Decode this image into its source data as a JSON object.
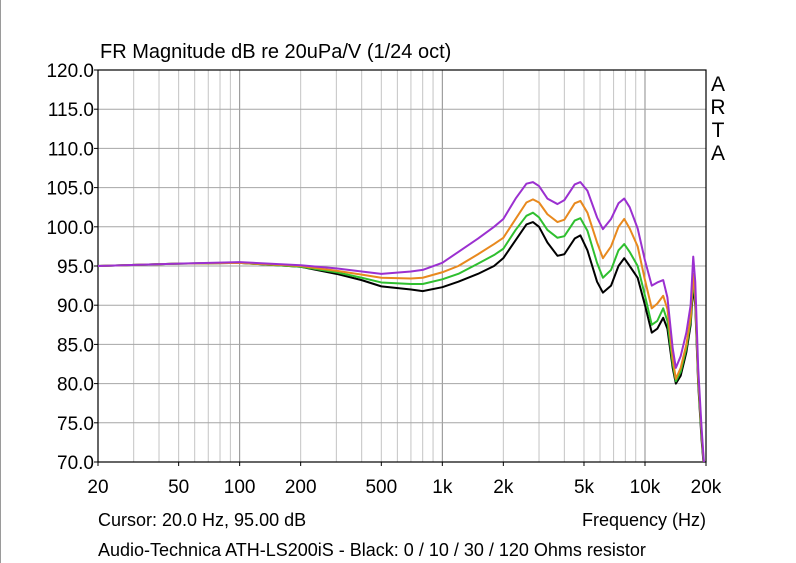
{
  "chart_data": {
    "type": "line",
    "title": "FR Magnitude dB re 20uPa/V (1/24 oct)",
    "xlabel": "Frequency (Hz)",
    "ylabel": "",
    "xscale": "log",
    "xlim": [
      20,
      20000
    ],
    "ylim": [
      70,
      120
    ],
    "grid": true,
    "y_ticks": [
      "120.0",
      "115.0",
      "110.0",
      "105.0",
      "100.0",
      "95.0",
      "90.0",
      "85.0",
      "80.0",
      "75.0",
      "70.0"
    ],
    "x_ticks": [
      {
        "value": 20,
        "label": "20"
      },
      {
        "value": 50,
        "label": "50"
      },
      {
        "value": 100,
        "label": "100"
      },
      {
        "value": 200,
        "label": "200"
      },
      {
        "value": 500,
        "label": "500"
      },
      {
        "value": 1000,
        "label": "1k"
      },
      {
        "value": 2000,
        "label": "2k"
      },
      {
        "value": 5000,
        "label": "5k"
      },
      {
        "value": 10000,
        "label": "10k"
      },
      {
        "value": 20000,
        "label": "20k"
      }
    ],
    "watermark": [
      "A",
      "R",
      "T",
      "A"
    ],
    "cursor_text": "Cursor: 20.0 Hz, 95.00 dB",
    "caption": "Audio-Technica ATH-LS200iS - Black: 0 / 10 / 30 / 120 Ohms resistor",
    "series": [
      {
        "color": "#000000",
        "points": [
          [
            20,
            95
          ],
          [
            50,
            95.3
          ],
          [
            100,
            95.4
          ],
          [
            200,
            94.9
          ],
          [
            300,
            94
          ],
          [
            400,
            93.2
          ],
          [
            500,
            92.4
          ],
          [
            700,
            92
          ],
          [
            800,
            91.8
          ],
          [
            1000,
            92.3
          ],
          [
            1200,
            93
          ],
          [
            1500,
            94
          ],
          [
            1800,
            95
          ],
          [
            2000,
            96
          ],
          [
            2300,
            98.3
          ],
          [
            2600,
            100.3
          ],
          [
            2800,
            100.6
          ],
          [
            3000,
            100
          ],
          [
            3300,
            98
          ],
          [
            3700,
            96.3
          ],
          [
            4000,
            96.5
          ],
          [
            4500,
            98.5
          ],
          [
            4800,
            98.9
          ],
          [
            5200,
            97
          ],
          [
            5800,
            93
          ],
          [
            6200,
            91.6
          ],
          [
            6800,
            92.5
          ],
          [
            7400,
            95
          ],
          [
            7900,
            96
          ],
          [
            8400,
            95
          ],
          [
            9200,
            93.5
          ],
          [
            10000,
            90
          ],
          [
            10800,
            86.5
          ],
          [
            11500,
            87
          ],
          [
            12300,
            88.4
          ],
          [
            12900,
            87
          ],
          [
            13700,
            82
          ],
          [
            14200,
            80
          ],
          [
            15000,
            81
          ],
          [
            16000,
            84
          ],
          [
            16800,
            87.5
          ],
          [
            17300,
            92.5
          ],
          [
            17700,
            90
          ],
          [
            18300,
            80
          ],
          [
            19000,
            73
          ],
          [
            20000,
            66
          ]
        ]
      },
      {
        "color": "#2fbf2f",
        "points": [
          [
            20,
            95
          ],
          [
            50,
            95.3
          ],
          [
            100,
            95.4
          ],
          [
            200,
            94.9
          ],
          [
            300,
            94.2
          ],
          [
            400,
            93.5
          ],
          [
            500,
            92.9
          ],
          [
            700,
            92.7
          ],
          [
            800,
            92.7
          ],
          [
            1000,
            93.3
          ],
          [
            1200,
            94
          ],
          [
            1500,
            95.3
          ],
          [
            1800,
            96.4
          ],
          [
            2000,
            97.2
          ],
          [
            2300,
            99.6
          ],
          [
            2600,
            101.4
          ],
          [
            2800,
            101.8
          ],
          [
            3000,
            101.2
          ],
          [
            3300,
            99.6
          ],
          [
            3700,
            98.6
          ],
          [
            4000,
            98.8
          ],
          [
            4500,
            100.8
          ],
          [
            4800,
            101.1
          ],
          [
            5200,
            99.5
          ],
          [
            5800,
            95.4
          ],
          [
            6200,
            93.5
          ],
          [
            6800,
            94.5
          ],
          [
            7400,
            97
          ],
          [
            7900,
            97.8
          ],
          [
            8400,
            96.8
          ],
          [
            9200,
            95
          ],
          [
            10000,
            91.2
          ],
          [
            10800,
            87.5
          ],
          [
            11500,
            88
          ],
          [
            12300,
            89.6
          ],
          [
            12900,
            88
          ],
          [
            13700,
            82.5
          ],
          [
            14200,
            80.3
          ],
          [
            15000,
            81.5
          ],
          [
            16000,
            84.5
          ],
          [
            16800,
            88
          ],
          [
            17300,
            93.5
          ],
          [
            17700,
            90.5
          ],
          [
            18300,
            80.5
          ],
          [
            19000,
            73.5
          ],
          [
            20000,
            66
          ]
        ]
      },
      {
        "color": "#e8891e",
        "points": [
          [
            20,
            95
          ],
          [
            50,
            95.3
          ],
          [
            100,
            95.4
          ],
          [
            200,
            95
          ],
          [
            300,
            94.4
          ],
          [
            400,
            93.9
          ],
          [
            500,
            93.5
          ],
          [
            700,
            93.4
          ],
          [
            800,
            93.5
          ],
          [
            1000,
            94.2
          ],
          [
            1200,
            95
          ],
          [
            1500,
            96.5
          ],
          [
            1800,
            97.8
          ],
          [
            2000,
            98.6
          ],
          [
            2300,
            101
          ],
          [
            2600,
            103.1
          ],
          [
            2800,
            103.5
          ],
          [
            3000,
            103.1
          ],
          [
            3300,
            101.6
          ],
          [
            3700,
            100.6
          ],
          [
            4000,
            100.9
          ],
          [
            4500,
            103
          ],
          [
            4800,
            103.3
          ],
          [
            5200,
            101.8
          ],
          [
            5800,
            98
          ],
          [
            6200,
            96
          ],
          [
            6800,
            97.5
          ],
          [
            7400,
            100
          ],
          [
            7900,
            101
          ],
          [
            8400,
            99.8
          ],
          [
            9200,
            97.5
          ],
          [
            10000,
            93.2
          ],
          [
            10800,
            89.6
          ],
          [
            11500,
            90.2
          ],
          [
            12300,
            91.2
          ],
          [
            12900,
            89.5
          ],
          [
            13700,
            83.2
          ],
          [
            14200,
            80.6
          ],
          [
            15000,
            82
          ],
          [
            16000,
            85
          ],
          [
            16800,
            88.5
          ],
          [
            17300,
            94
          ],
          [
            17700,
            91
          ],
          [
            18300,
            81
          ],
          [
            19000,
            74
          ],
          [
            20000,
            66
          ]
        ]
      },
      {
        "color": "#9b30d0",
        "points": [
          [
            20,
            95
          ],
          [
            50,
            95.3
          ],
          [
            100,
            95.5
          ],
          [
            200,
            95.1
          ],
          [
            300,
            94.7
          ],
          [
            400,
            94.3
          ],
          [
            500,
            94
          ],
          [
            700,
            94.3
          ],
          [
            800,
            94.5
          ],
          [
            1000,
            95.4
          ],
          [
            1200,
            96.8
          ],
          [
            1500,
            98.5
          ],
          [
            1800,
            100
          ],
          [
            2000,
            101
          ],
          [
            2300,
            103.6
          ],
          [
            2600,
            105.5
          ],
          [
            2800,
            105.7
          ],
          [
            3000,
            105.2
          ],
          [
            3300,
            103.6
          ],
          [
            3700,
            102.9
          ],
          [
            4000,
            103.4
          ],
          [
            4500,
            105.4
          ],
          [
            4800,
            105.7
          ],
          [
            5200,
            104.6
          ],
          [
            5800,
            101.2
          ],
          [
            6200,
            99.7
          ],
          [
            6800,
            101
          ],
          [
            7400,
            103
          ],
          [
            7900,
            103.6
          ],
          [
            8400,
            102.5
          ],
          [
            9200,
            99.8
          ],
          [
            10000,
            95.7
          ],
          [
            10800,
            92.5
          ],
          [
            11500,
            92.9
          ],
          [
            12300,
            93.2
          ],
          [
            12900,
            91
          ],
          [
            13700,
            84.5
          ],
          [
            14200,
            82
          ],
          [
            15000,
            83.5
          ],
          [
            16000,
            86.5
          ],
          [
            16800,
            90
          ],
          [
            17300,
            96.2
          ],
          [
            17700,
            93
          ],
          [
            18300,
            82
          ],
          [
            19000,
            74.5
          ],
          [
            20000,
            66
          ]
        ]
      }
    ]
  }
}
